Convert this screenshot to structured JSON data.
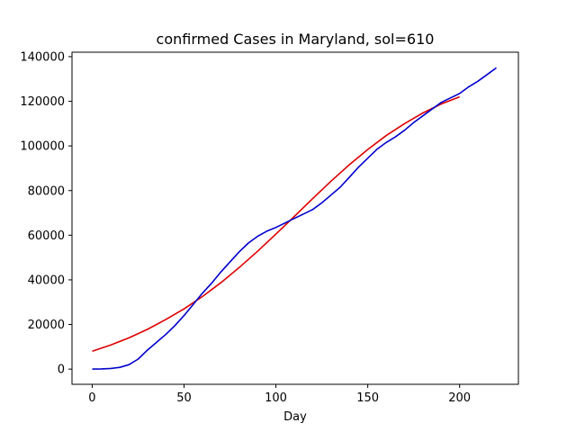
{
  "chart_data": {
    "type": "line",
    "title": "confirmed Cases in Maryland, sol=610",
    "xlabel": "Day",
    "ylabel": "",
    "xlim": [
      -11,
      232
    ],
    "ylim": [
      -6800,
      142000
    ],
    "xticks": [
      0,
      50,
      100,
      150,
      200
    ],
    "yticks": [
      0,
      20000,
      40000,
      60000,
      80000,
      100000,
      120000,
      140000
    ],
    "grid": false,
    "legend": "none",
    "series": [
      {
        "color": "#dd0000",
        "x": [
          0,
          10,
          20,
          30,
          40,
          50,
          60,
          70,
          80,
          90,
          100,
          110,
          120,
          130,
          140,
          150,
          160,
          170,
          180,
          190,
          200
        ],
        "y": [
          8000,
          10800,
          14000,
          17800,
          22200,
          27000,
          32500,
          38700,
          45500,
          52800,
          60500,
          68400,
          76400,
          84200,
          91600,
          98400,
          104600,
          110000,
          114800,
          118800,
          122000
        ]
      },
      {
        "color": "#0000cc",
        "x": [
          0,
          5,
          10,
          15,
          20,
          25,
          30,
          35,
          40,
          45,
          50,
          55,
          60,
          65,
          70,
          75,
          80,
          85,
          90,
          95,
          100,
          105,
          110,
          115,
          120,
          125,
          130,
          135,
          140,
          145,
          150,
          155,
          160,
          165,
          170,
          175,
          180,
          185,
          190,
          195,
          200,
          205,
          210,
          215,
          220
        ],
        "y": [
          0,
          100,
          300,
          800,
          2000,
          4500,
          8500,
          12000,
          15500,
          19500,
          24000,
          29000,
          34000,
          38500,
          43500,
          48000,
          52500,
          56500,
          59500,
          61800,
          63500,
          65500,
          67500,
          69500,
          71500,
          74500,
          78000,
          81500,
          86000,
          90500,
          94500,
          98500,
          101500,
          104000,
          107000,
          110500,
          113500,
          116500,
          119500,
          121500,
          123500,
          126500,
          129000,
          132000,
          135000
        ]
      }
    ]
  }
}
